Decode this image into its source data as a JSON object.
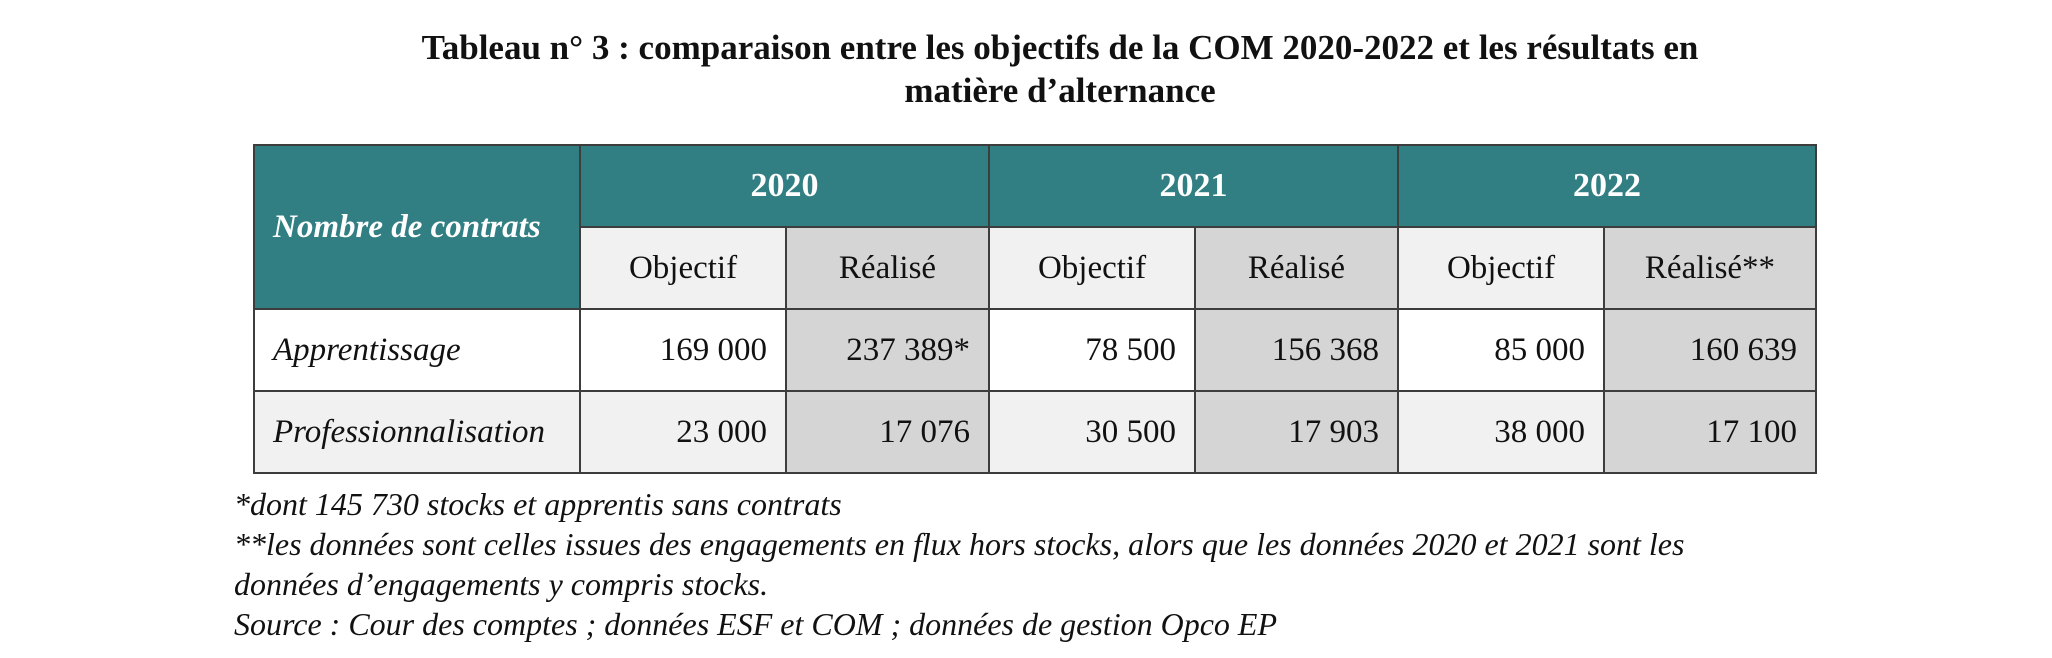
{
  "title": {
    "line1": "Tableau n° 3 :  comparaison entre les objectifs de la COM 2020-2022 et les résultats en",
    "line2": "matière d’alternance"
  },
  "table": {
    "corner_label": "Nombre de contrats",
    "years": [
      "2020",
      "2021",
      "2022"
    ],
    "subheaders": [
      "Objectif",
      "Réalisé",
      "Objectif",
      "Réalisé",
      "Objectif",
      "Réalisé**"
    ],
    "rows": [
      {
        "label": "Apprentissage",
        "values": [
          "169 000",
          "237 389*",
          "78 500",
          "156 368",
          "85 000",
          "160 639"
        ]
      },
      {
        "label": "Professionnalisation",
        "values": [
          "23 000",
          "17 076",
          "30 500",
          "17 903",
          "38 000",
          "17 100"
        ]
      }
    ]
  },
  "notes": {
    "note1": "*dont 145 730 stocks et apprentis sans contrats",
    "note2_line1": "**les données sont celles issues des engagements en flux hors stocks, alors que les données 2020 et 2021 sont les",
    "note2_line2": "données d’engagements y compris stocks.",
    "source": "Source : Cour des comptes ; données ESF et COM ; données de gestion Opco EP"
  },
  "colors": {
    "header_teal": "#317f83",
    "objective_bg": "#f1f1f1",
    "realised_bg": "#d5d5d5"
  }
}
